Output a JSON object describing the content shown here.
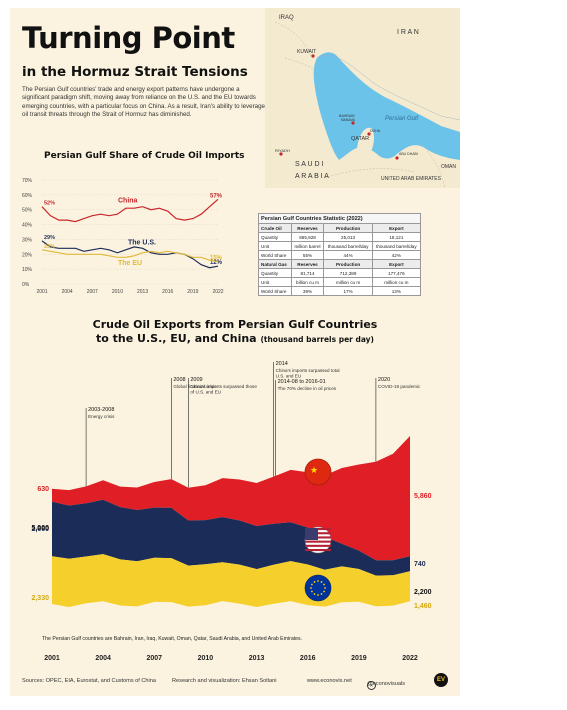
{
  "header": {
    "title": "Turning Point",
    "subtitle": "in the Hormuz Strait Tensions",
    "intro": "The Persian Gulf countries' trade and energy export patterns have undergone a significant paradigm shift, moving away from reliance on the U.S. and the EU towards emerging countries, with a particular focus on China. As a result, Iran's ability to leverage oil transit threats through the Strait of Hormuz has diminished."
  },
  "map": {
    "labels": {
      "iraq": "IRAQ",
      "kuwait": "KUWAIT",
      "iran": "I R A N",
      "bahrain": "BAHRAIN",
      "manama": "MANAMA",
      "doha": "DOHA",
      "qatar": "QATAR",
      "persian_gulf": "Persian Gulf",
      "riyadh": "RIYADH",
      "saudi": "S A U D I",
      "arabia": "A R A B I A",
      "abu_dhabi": "ABU DHABI",
      "uae": "UNITED ARAB EMIRATES",
      "oman": "OMAN"
    },
    "colors": {
      "land": "#f4ead0",
      "water": "#6cc3ea",
      "city": "#c0282d"
    }
  },
  "stats_table": {
    "caption": "Persian Gulf Countries Statistic (2022)",
    "headers": [
      "Reserves",
      "Production",
      "Export"
    ],
    "sections": [
      {
        "name": "Crude Oil",
        "rows": [
          {
            "label": "Quantity",
            "values": [
              "865,928",
              "25,013",
              "18,121"
            ]
          },
          {
            "label": "Unit",
            "values": [
              "million barrel",
              "thousand barrel/day",
              "thousand barrel/day"
            ]
          },
          {
            "label": "World Share",
            "values": [
              "55%",
              "44%",
              "42%"
            ]
          }
        ]
      },
      {
        "name": "Natural Gas",
        "rows": [
          {
            "label": "Quantity",
            "values": [
              "81,714",
              "712,389",
              "177,476"
            ]
          },
          {
            "label": "Unit",
            "values": [
              "billion cu m",
              "million cu m",
              "million cu m"
            ]
          },
          {
            "label": "World Share",
            "values": [
              "39%",
              "17%",
              "13%"
            ]
          }
        ]
      }
    ]
  },
  "footnote": "The Persian Gulf countries are Bahrain, Iran, Iraq, Kuwait, Oman, Qatar, Saudi Arabia, and United Arab Emirates.",
  "footer": {
    "sources": "Sources: OPEC, EIA, Eurostat, and Customs of China",
    "credit": "Research and visualization: Ehsan Soltani",
    "website": "www.econovis.net",
    "handle": "@econovisuals",
    "logo": "EV"
  },
  "chart_data": [
    {
      "type": "line",
      "title": "Persian Gulf Share of Crude Oil Imports",
      "x": [
        2001,
        2002,
        2003,
        2004,
        2005,
        2006,
        2007,
        2008,
        2009,
        2010,
        2011,
        2012,
        2013,
        2014,
        2015,
        2016,
        2017,
        2018,
        2019,
        2020,
        2021,
        2022
      ],
      "xticks": [
        "2001",
        "2004",
        "2007",
        "2010",
        "2013",
        "2016",
        "2019",
        "2022"
      ],
      "yticks": [
        "70%",
        "60%",
        "50%",
        "40%",
        "30%",
        "20%",
        "10%",
        "0%"
      ],
      "ylim": [
        0,
        70
      ],
      "series": [
        {
          "name": "China",
          "color": "#c8262c",
          "values": [
            52,
            46,
            43,
            43,
            42,
            44,
            46,
            47,
            46,
            47,
            51,
            51,
            52,
            50,
            51,
            49,
            44,
            43,
            44,
            47,
            52,
            57
          ],
          "start_label": "52%",
          "end_label": "57%"
        },
        {
          "name": "The U.S.",
          "color": "#1d2d5a",
          "values": [
            29,
            25,
            24,
            24,
            24,
            22,
            23,
            24,
            23,
            21,
            23,
            25,
            24,
            21,
            20,
            20,
            21,
            20,
            17,
            13,
            11,
            12
          ],
          "start_label": "29%",
          "end_label": "12%"
        },
        {
          "name": "The EU",
          "color": "#e0b93a",
          "values": [
            23,
            22,
            21,
            20,
            20,
            20,
            20,
            20,
            19,
            18,
            18,
            19,
            21,
            22,
            21,
            22,
            21,
            20,
            18,
            18,
            16,
            15
          ],
          "start_label": "23%",
          "end_label": "15%"
        }
      ]
    },
    {
      "type": "area",
      "title": "Crude Oil Exports from Persian Gulf Countries",
      "title_line2": "to the U.S., EU, and China",
      "unit_note": "(thousand barrels per day)",
      "x": [
        2001,
        2002,
        2003,
        2004,
        2005,
        2006,
        2007,
        2008,
        2009,
        2010,
        2011,
        2012,
        2013,
        2014,
        2015,
        2016,
        2017,
        2018,
        2019,
        2020,
        2021,
        2022
      ],
      "xticks": [
        "2001",
        "2004",
        "2007",
        "2010",
        "2013",
        "2016",
        "2019",
        "2022"
      ],
      "series": [
        {
          "name": "The EU",
          "color": "#f5cf2b",
          "values": [
            2330,
            2350,
            2280,
            2300,
            2250,
            2200,
            2150,
            2150,
            2000,
            2000,
            1900,
            1900,
            1850,
            1900,
            1950,
            1980,
            1800,
            1750,
            1600,
            1500,
            1480,
            1460
          ],
          "start_label": "2,330",
          "end_label": "1,460"
        },
        {
          "name": "The U.S.",
          "color": "#1a2c57",
          "values": [
            2660,
            2600,
            2600,
            2650,
            2550,
            2500,
            2450,
            2450,
            2200,
            2150,
            2200,
            2150,
            2100,
            2000,
            1900,
            1800,
            1600,
            1100,
            900,
            750,
            730,
            740
          ],
          "start_label": "2,660",
          "end_label": "740"
        },
        {
          "name": "China",
          "color": "#e01e26",
          "values": [
            630,
            750,
            820,
            950,
            1000,
            1100,
            1250,
            1400,
            1600,
            1700,
            1900,
            2000,
            2100,
            2300,
            2550,
            2700,
            3000,
            3700,
            4200,
            4800,
            5200,
            5860
          ],
          "start_label": "630",
          "end_label": "5,860"
        }
      ],
      "side_labels": {
        "left_total": "5,000",
        "right_total": "2,200"
      },
      "annotations": [
        {
          "year": 2003,
          "date": "2003-2008",
          "text": "Energy crisis"
        },
        {
          "year": 2008,
          "date": "2008",
          "text": "Global financial crisis"
        },
        {
          "year": 2009,
          "date": "2009",
          "text": "China's imports surpassed those of U.S. and EU"
        },
        {
          "year": 2014,
          "date": "2014",
          "text": "China's imports surpassed total U.S. and EU"
        },
        {
          "year": 2014,
          "date": "2014-08 to 2016-01",
          "text": "The 70% decline in oil prices"
        },
        {
          "year": 2020,
          "date": "2020",
          "text": "COVID-19 pandemic"
        }
      ]
    }
  ]
}
